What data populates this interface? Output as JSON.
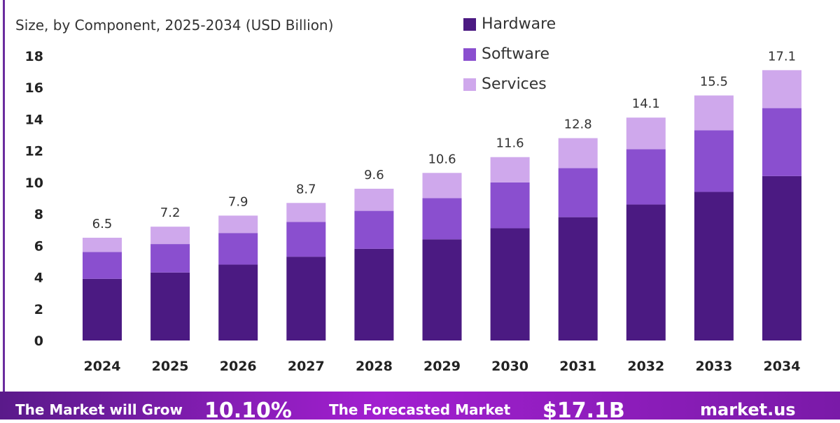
{
  "chart_data": {
    "type": "bar",
    "stacked": true,
    "subtitle": "Size, by Component, 2025-2034 (USD Billion)",
    "categories": [
      "2024",
      "2025",
      "2026",
      "2027",
      "2028",
      "2029",
      "2030",
      "2031",
      "2032",
      "2033",
      "2034"
    ],
    "series": [
      {
        "name": "Hardware",
        "color": "#4b1a82",
        "values": [
          3.9,
          4.3,
          4.8,
          5.3,
          5.8,
          6.4,
          7.1,
          7.8,
          8.6,
          9.4,
          10.4
        ]
      },
      {
        "name": "Software",
        "color": "#8a4fcf",
        "values": [
          1.7,
          1.8,
          2.0,
          2.2,
          2.4,
          2.6,
          2.9,
          3.1,
          3.5,
          3.9,
          4.3
        ]
      },
      {
        "name": "Services",
        "color": "#cfa8ec",
        "values": [
          0.9,
          1.1,
          1.1,
          1.2,
          1.4,
          1.6,
          1.6,
          1.9,
          2.0,
          2.2,
          2.4
        ]
      }
    ],
    "totals": [
      "6.5",
      "7.2",
      "7.9",
      "8.7",
      "9.6",
      "10.6",
      "11.6",
      "12.8",
      "14.1",
      "15.5",
      "17.1"
    ],
    "yticks": [
      "0",
      "2",
      "4",
      "6",
      "8",
      "10",
      "12",
      "14",
      "16",
      "18"
    ],
    "ylim": [
      0,
      18
    ],
    "grid": false,
    "legend": "top-right"
  },
  "banner": {
    "grow_label": "The Market will Grow",
    "cagr": "10.10%",
    "forecast_label": "The Forecasted Market",
    "forecast_value": "$17.1B",
    "brand": "market.us"
  }
}
